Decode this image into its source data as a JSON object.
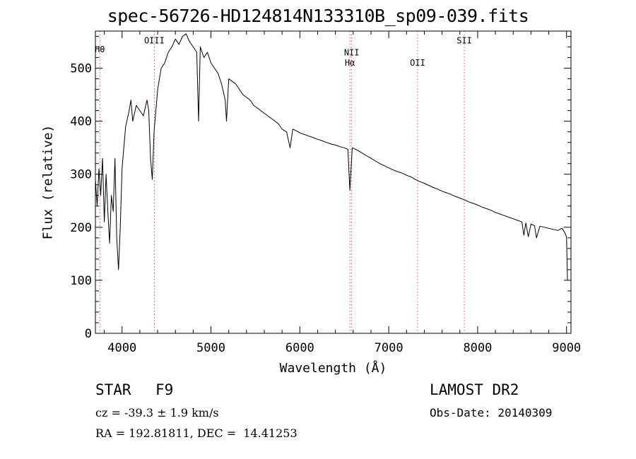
{
  "chart_data": {
    "type": "line",
    "title": "spec-56726-HD124814N133310B_sp09-039.fits",
    "xlabel": "Wavelength (Å)",
    "ylabel": "Flux (relative)",
    "xlim": [
      3700,
      9050
    ],
    "ylim": [
      0,
      570
    ],
    "xticks": [
      {
        "value": 4000,
        "label": "4000"
      },
      {
        "value": 5000,
        "label": "5000"
      },
      {
        "value": 6000,
        "label": "6000"
      },
      {
        "value": 7000,
        "label": "7000"
      },
      {
        "value": 8000,
        "label": "8000"
      },
      {
        "value": 9000,
        "label": "9000"
      }
    ],
    "yticks": [
      {
        "value": 0,
        "label": "0"
      },
      {
        "value": 100,
        "label": "100"
      },
      {
        "value": 200,
        "label": "200"
      },
      {
        "value": 300,
        "label": "300"
      },
      {
        "value": 400,
        "label": "400"
      },
      {
        "value": 500,
        "label": "500"
      }
    ],
    "line_color": "#000000",
    "marker_color": "#e05050",
    "lines": [
      {
        "wavelength": 3750,
        "label": "Hθ",
        "label_y": 530
      },
      {
        "wavelength": 4363,
        "label": "OIII",
        "label_y": 547
      },
      {
        "wavelength": 6563,
        "label": "Hα",
        "label_y": 505
      },
      {
        "wavelength": 6583,
        "label": "NII",
        "label_y": 524
      },
      {
        "wavelength": 7325,
        "label": "OII",
        "label_y": 505
      },
      {
        "wavelength": 7850,
        "label": "SII",
        "label_y": 547
      }
    ],
    "series": [
      {
        "x": [
          3700,
          3720,
          3740,
          3760,
          3780,
          3800,
          3820,
          3840,
          3860,
          3880,
          3900,
          3920,
          3940,
          3960,
          3980,
          4000,
          4040,
          4080,
          4100,
          4120,
          4160,
          4200,
          4240,
          4280,
          4300,
          4320,
          4340,
          4360,
          4400,
          4440,
          4480,
          4520,
          4560,
          4600,
          4640,
          4680,
          4720,
          4760,
          4800,
          4840,
          4861,
          4880,
          4920,
          4960,
          5000,
          5040,
          5080,
          5120,
          5160,
          5175,
          5200,
          5240,
          5280,
          5320,
          5360,
          5400,
          5440,
          5480,
          5520,
          5560,
          5600,
          5640,
          5680,
          5720,
          5760,
          5800,
          5850,
          5890,
          5920,
          5960,
          6000,
          6050,
          6100,
          6150,
          6200,
          6250,
          6300,
          6350,
          6400,
          6450,
          6500,
          6540,
          6563,
          6590,
          6650,
          6700,
          6750,
          6800,
          6850,
          6900,
          6950,
          7000,
          7050,
          7100,
          7150,
          7200,
          7250,
          7300,
          7350,
          7400,
          7450,
          7500,
          7550,
          7600,
          7650,
          7700,
          7750,
          7800,
          7850,
          7900,
          7950,
          8000,
          8050,
          8100,
          8150,
          8200,
          8250,
          8300,
          8350,
          8400,
          8450,
          8498,
          8520,
          8542,
          8570,
          8600,
          8640,
          8662,
          8700,
          8750,
          8800,
          8850,
          8900,
          8950,
          8980,
          9000,
          9010
        ],
        "y": [
          290,
          240,
          310,
          260,
          330,
          210,
          300,
          230,
          170,
          260,
          230,
          330,
          180,
          120,
          200,
          310,
          390,
          420,
          440,
          400,
          430,
          420,
          410,
          440,
          420,
          330,
          290,
          380,
          460,
          500,
          510,
          530,
          540,
          555,
          545,
          560,
          565,
          550,
          540,
          530,
          400,
          540,
          520,
          530,
          510,
          500,
          490,
          470,
          440,
          400,
          480,
          475,
          470,
          460,
          450,
          445,
          440,
          430,
          425,
          420,
          415,
          410,
          405,
          400,
          395,
          385,
          380,
          350,
          385,
          382,
          378,
          375,
          372,
          369,
          366,
          363,
          360,
          357,
          355,
          352,
          350,
          347,
          270,
          350,
          345,
          340,
          335,
          330,
          325,
          320,
          316,
          312,
          308,
          305,
          302,
          298,
          295,
          290,
          286,
          283,
          279,
          275,
          272,
          268,
          265,
          262,
          258,
          255,
          252,
          248,
          245,
          242,
          238,
          235,
          232,
          228,
          225,
          222,
          219,
          216,
          213,
          210,
          185,
          208,
          182,
          206,
          203,
          180,
          202,
          200,
          198,
          196,
          194,
          198,
          190,
          182,
          100
        ]
      }
    ],
    "info": {
      "class": "STAR",
      "subclass": "F9",
      "survey": "LAMOST DR2",
      "cz": "cz = -39.3 ± 1.9 km/s",
      "obs_date": "Obs-Date: 20140309",
      "radec": "RA = 192.81811, DEC =  14.41253"
    }
  }
}
